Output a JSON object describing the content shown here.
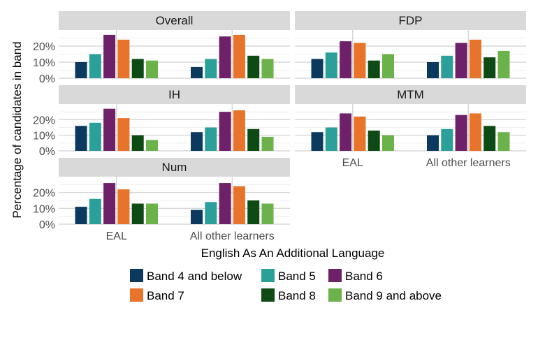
{
  "chart_data": {
    "type": "bar",
    "xlabel": "English As An Additional Language",
    "ylabel": "Percentage of candidates in band",
    "categories": [
      "EAL",
      "All other learners"
    ],
    "yticks": [
      "0%",
      "10%",
      "20%"
    ],
    "ylim": [
      0,
      0.3
    ],
    "grid": true,
    "legend_position": "bottom",
    "bands": [
      {
        "name": "Band 4 and below",
        "color": "#0b3a5e"
      },
      {
        "name": "Band 5",
        "color": "#2ba09b"
      },
      {
        "name": "Band 6",
        "color": "#6e2169"
      },
      {
        "name": "Band 7",
        "color": "#e8732a"
      },
      {
        "name": "Band 8",
        "color": "#0e4a14"
      },
      {
        "name": "Band 9 and above",
        "color": "#6bb24a"
      }
    ],
    "panels": [
      {
        "title": "Overall",
        "values": [
          [
            0.1,
            0.15,
            0.27,
            0.24,
            0.12,
            0.11
          ],
          [
            0.07,
            0.12,
            0.26,
            0.27,
            0.14,
            0.12
          ]
        ]
      },
      {
        "title": "FDP",
        "values": [
          [
            0.12,
            0.16,
            0.23,
            0.22,
            0.11,
            0.15
          ],
          [
            0.1,
            0.14,
            0.22,
            0.24,
            0.13,
            0.17
          ]
        ]
      },
      {
        "title": "IH",
        "values": [
          [
            0.16,
            0.18,
            0.27,
            0.21,
            0.1,
            0.07
          ],
          [
            0.12,
            0.15,
            0.25,
            0.26,
            0.14,
            0.09
          ]
        ]
      },
      {
        "title": "MTM",
        "values": [
          [
            0.12,
            0.15,
            0.24,
            0.22,
            0.13,
            0.1
          ],
          [
            0.1,
            0.14,
            0.23,
            0.24,
            0.16,
            0.12
          ]
        ]
      },
      {
        "title": "Num",
        "values": [
          [
            0.11,
            0.16,
            0.26,
            0.22,
            0.13,
            0.13
          ],
          [
            0.09,
            0.14,
            0.26,
            0.24,
            0.15,
            0.13
          ]
        ]
      }
    ]
  }
}
